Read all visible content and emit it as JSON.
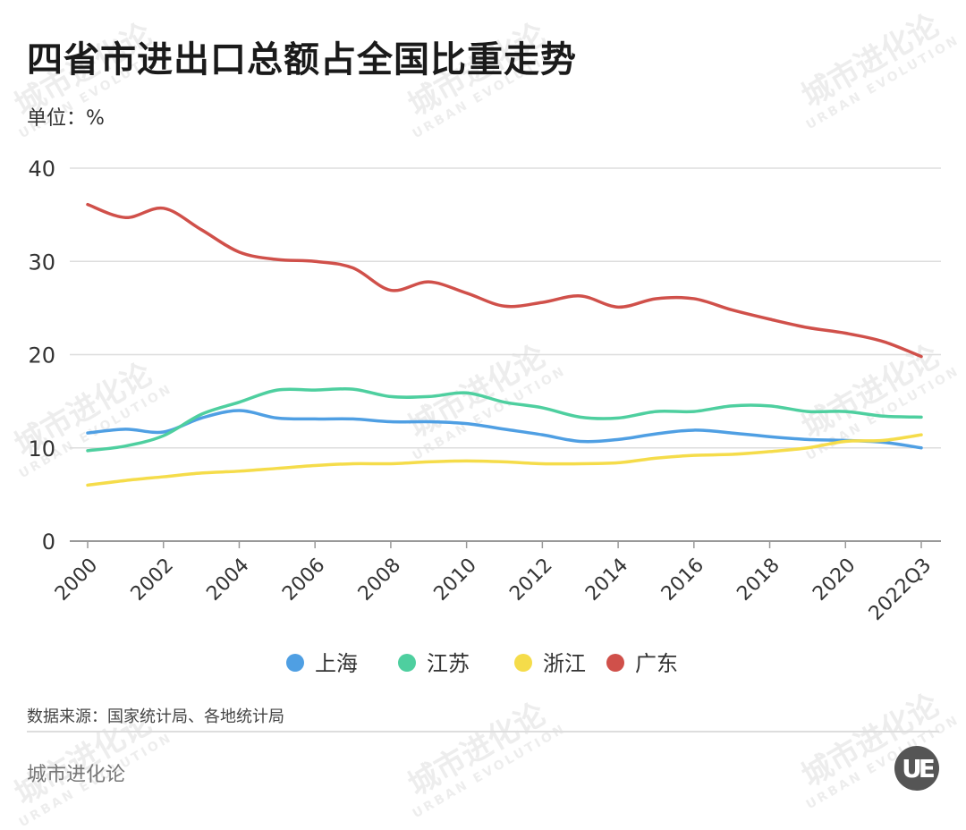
{
  "title": "四省市进出口总额占全国比重走势",
  "unit_label": "单位：%",
  "source": "数据来源：国家统计局、各地统计局",
  "brand": "城市进化论",
  "logo_text": "UE",
  "watermark": {
    "cn": "城市进化论",
    "en": "URBAN EVOLUTION"
  },
  "chart_data": {
    "type": "line",
    "title": "四省市进出口总额占全国比重走势",
    "ylabel": "单位：%",
    "xlabel": "",
    "ylim": [
      0,
      40
    ],
    "yticks": [
      0,
      10,
      20,
      30,
      40
    ],
    "grid": true,
    "legend_position": "bottom",
    "x": [
      "2000",
      "2001",
      "2002",
      "2003",
      "2004",
      "2005",
      "2006",
      "2007",
      "2008",
      "2009",
      "2010",
      "2011",
      "2012",
      "2013",
      "2014",
      "2015",
      "2016",
      "2017",
      "2018",
      "2019",
      "2020",
      "2021",
      "2022Q3"
    ],
    "xtick_labels": [
      "2000",
      "2002",
      "2004",
      "2006",
      "2008",
      "2010",
      "2012",
      "2014",
      "2016",
      "2018",
      "2020",
      "2022Q3"
    ],
    "series": [
      {
        "name": "上海",
        "color": "#4f9fe3",
        "values": [
          11.6,
          12.0,
          11.7,
          13.2,
          14.0,
          13.2,
          13.1,
          13.1,
          12.8,
          12.8,
          12.6,
          12.0,
          11.4,
          10.7,
          10.9,
          11.5,
          11.9,
          11.6,
          11.2,
          10.9,
          10.8,
          10.6,
          10.0
        ]
      },
      {
        "name": "江苏",
        "color": "#4ecf9f",
        "values": [
          9.7,
          10.2,
          11.3,
          13.6,
          14.9,
          16.2,
          16.2,
          16.3,
          15.5,
          15.5,
          15.9,
          14.9,
          14.3,
          13.3,
          13.2,
          13.9,
          13.9,
          14.5,
          14.5,
          13.9,
          13.9,
          13.4,
          13.3
        ]
      },
      {
        "name": "浙江",
        "color": "#f5dc4a",
        "values": [
          6.0,
          6.5,
          6.9,
          7.3,
          7.5,
          7.8,
          8.1,
          8.3,
          8.3,
          8.5,
          8.6,
          8.5,
          8.3,
          8.3,
          8.4,
          8.9,
          9.2,
          9.3,
          9.6,
          10.0,
          10.7,
          10.8,
          11.4
        ]
      },
      {
        "name": "广东",
        "color": "#d0504a",
        "values": [
          36.1,
          34.7,
          35.7,
          33.4,
          31.0,
          30.2,
          30.0,
          29.3,
          26.9,
          27.8,
          26.6,
          25.2,
          25.6,
          26.3,
          25.1,
          26.0,
          26.0,
          24.8,
          23.8,
          22.9,
          22.3,
          21.4,
          19.8
        ]
      }
    ]
  }
}
